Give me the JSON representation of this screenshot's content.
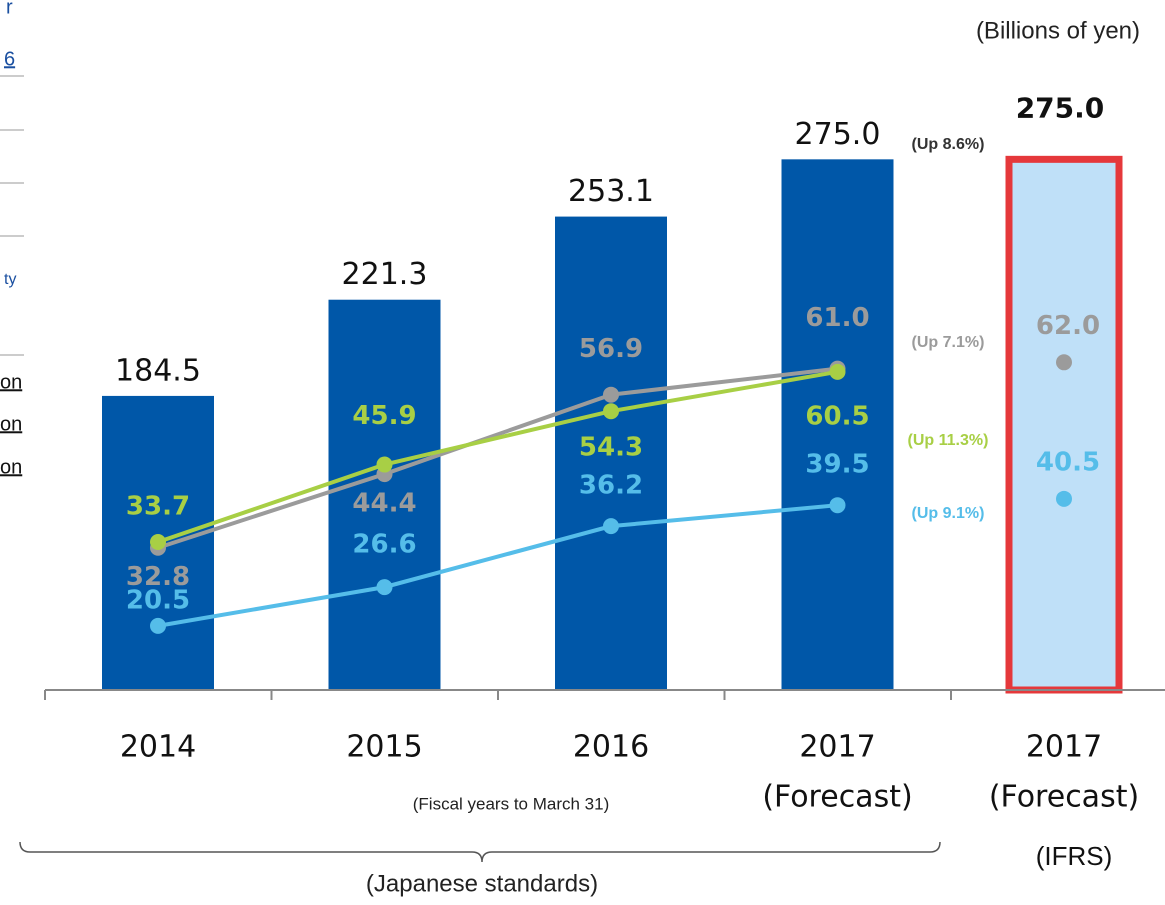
{
  "sidebar": {
    "fragments": [
      "r",
      "6",
      "ty",
      "on",
      "on",
      "on"
    ]
  },
  "chart_data": {
    "type": "bar",
    "unit_label": "(Billions of yen)",
    "categories": [
      "2014",
      "2015",
      "2016",
      "2017"
    ],
    "forecast_label": "(Forecast)",
    "note": "(Fiscal years to March 31)",
    "bracket_label": "(Japanese standards)",
    "ylim": [
      72,
      313
    ],
    "y2lim": [
      10.4,
      109.6
    ],
    "series": [
      {
        "color": "#0057a8",
        "values": [
          184.5,
          221.3,
          253.1,
          275
        ],
        "value_labels": [
          "184.5",
          "221.3",
          "253.1",
          "275.0"
        ],
        "growth_label": "(Up 8.6%)",
        "growth_color": "#333333"
      },
      {
        "color": "#9b9b9b",
        "axis": "y2",
        "values": [
          32.8,
          44.4,
          56.9,
          61
        ],
        "value_labels": [
          "32.8",
          "44.4",
          "56.9",
          "61.0"
        ],
        "growth_label": "(Up 7.1%)",
        "growth_color": "#9b9b9b"
      },
      {
        "color": "#a8cf45",
        "axis": "y2",
        "values": [
          33.7,
          45.9,
          54.3,
          60.5
        ],
        "value_labels": [
          "33.7",
          "45.9",
          "54.3",
          "60.5"
        ],
        "growth_label": "(Up 11.3%)",
        "growth_color": "#a8cf45"
      },
      {
        "color": "#55bde9",
        "axis": "y2",
        "values": [
          20.5,
          26.6,
          36.2,
          39.5
        ],
        "value_labels": [
          "20.5",
          "26.6",
          "36.2",
          "39.5"
        ],
        "growth_label": "(Up 9.1%)",
        "growth_color": "#55bde9"
      }
    ],
    "ifrs": {
      "category": "2017",
      "forecast_label": "(Forecast)",
      "standard_label": "(IFRS)",
      "bar_value": 275,
      "bar_label": "275.0",
      "bar_color": "#bfe0f8",
      "border_color": "#e5383b",
      "values": [
        62,
        40.5
      ],
      "value_labels": [
        "62.0",
        "40.5"
      ]
    }
  }
}
